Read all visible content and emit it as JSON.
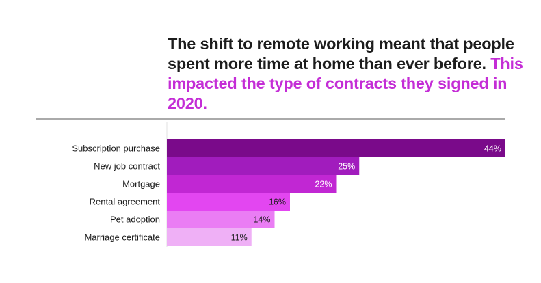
{
  "chart_data": {
    "type": "bar",
    "orientation": "horizontal",
    "title": "The shift to remote working meant that people spent more time at home than ever before.",
    "subtitle": "This impacted the type of contracts they signed in 2020.",
    "categories": [
      "Subscription purchase",
      "New job contract",
      "Mortgage",
      "Rental agreement",
      "Pet adoption",
      "Marriage certificate"
    ],
    "values": [
      44,
      25,
      22,
      16,
      14,
      11
    ],
    "value_labels": [
      "44%",
      "25%",
      "22%",
      "16%",
      "14%",
      "11%"
    ],
    "xlim": [
      0,
      44
    ],
    "grid": false,
    "legend": "none"
  },
  "colors": {
    "title_text": "#1c1c1c",
    "title_accent": "#c42dd6",
    "bars": [
      "#7a0a8a",
      "#a11cbd",
      "#c127d3",
      "#e346f1",
      "#ea7df4",
      "#efb0f6"
    ],
    "value_text": [
      "#ffffff",
      "#ffffff",
      "#ffffff",
      "#1c1c1c",
      "#1c1c1c",
      "#1c1c1c"
    ],
    "rule": "#555555",
    "axis": "#e2e2e2"
  }
}
